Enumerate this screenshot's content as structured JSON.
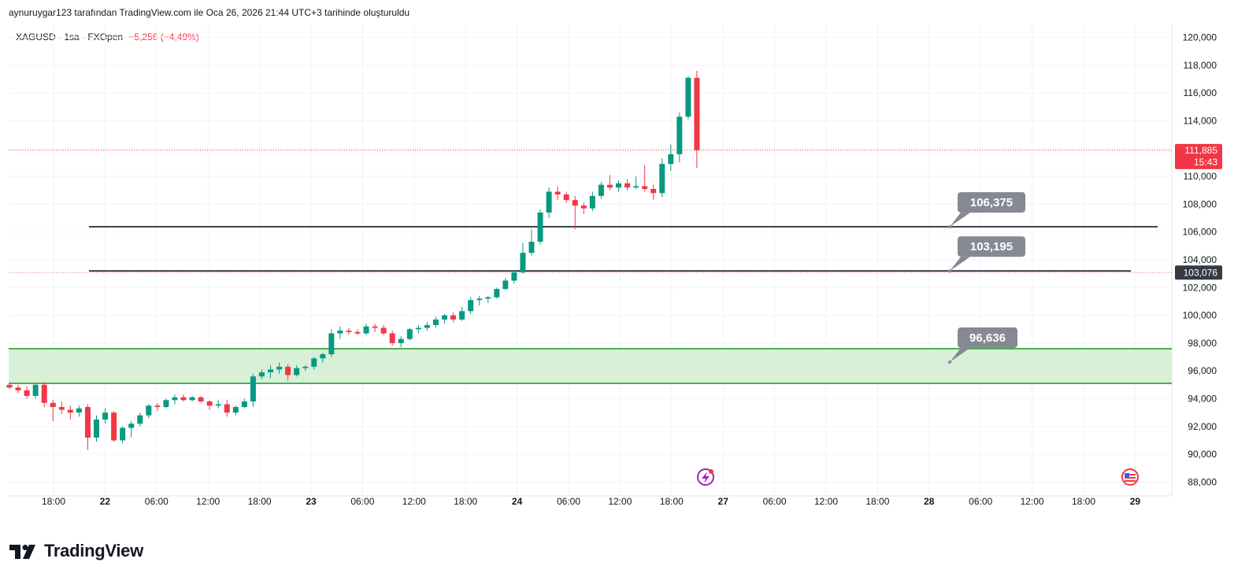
{
  "header": {
    "attribution": "aynuruygar123 tarafından TradingView.com ile Oca 26, 2026 21:44 UTC+3 tarihinde oluşturuldu"
  },
  "legend": {
    "symbol": "XAGUSD · 1sa · FXOpen",
    "change": "−5,256 (−4,49%)"
  },
  "footer": {
    "brand": "TradingView"
  },
  "colors": {
    "up": "#089981",
    "down": "#f23645",
    "zone_fill": "#d8f0d8",
    "zone_line": "#4caf50",
    "line": "#131722",
    "callout": "#868993"
  },
  "chart_data": {
    "type": "candlestick",
    "symbol": "XAGUSD",
    "interval": "1sa",
    "ylim": [
      87,
      121
    ],
    "y_ticks": [
      "120,000",
      "118,000",
      "116,000",
      "114,000",
      "112,000",
      "110,000",
      "108,000",
      "106,000",
      "104,000",
      "102,000",
      "100,000",
      "98,000",
      "96,000",
      "94,000",
      "92,000",
      "90,000",
      "88,000"
    ],
    "y_tick_values": [
      120,
      118,
      116,
      114,
      112,
      110,
      108,
      106,
      104,
      102,
      100,
      98,
      96,
      94,
      92,
      90,
      88
    ],
    "x_ticks": [
      "18:00",
      "22",
      "06:00",
      "12:00",
      "18:00",
      "23",
      "06:00",
      "12:00",
      "18:00",
      "24",
      "06:00",
      "12:00",
      "18:00",
      "27",
      "06:00",
      "12:00",
      "18:00",
      "28",
      "06:00",
      "12:00",
      "18:00",
      "29"
    ],
    "x_tick_bold": [
      false,
      true,
      false,
      false,
      false,
      true,
      false,
      false,
      false,
      true,
      false,
      false,
      false,
      true,
      false,
      false,
      false,
      true,
      false,
      false,
      false,
      true
    ],
    "last_price": {
      "value": 111.885,
      "label": "111,885",
      "timer": "15:43"
    },
    "marked_price": {
      "value": 103.076,
      "label": "103,076"
    },
    "levels": [
      {
        "value": 106.375,
        "label": "106,375"
      },
      {
        "value": 103.195,
        "label": "103,195"
      }
    ],
    "zone": {
      "from": 95.1,
      "to": 97.6,
      "label": "96,636",
      "label_value": 96.636
    },
    "candles": [
      [
        95.0,
        95.1,
        94.7,
        94.8
      ],
      [
        94.8,
        95.0,
        94.4,
        94.6
      ],
      [
        94.6,
        94.9,
        94.0,
        94.2
      ],
      [
        94.2,
        95.1,
        94.0,
        95.0
      ],
      [
        95.0,
        95.2,
        93.4,
        93.7
      ],
      [
        93.7,
        93.9,
        92.4,
        93.4
      ],
      [
        93.4,
        93.8,
        92.9,
        93.2
      ],
      [
        93.2,
        93.5,
        92.5,
        93.0
      ],
      [
        93.0,
        93.5,
        92.7,
        93.3
      ],
      [
        93.4,
        93.6,
        90.3,
        91.2
      ],
      [
        91.2,
        92.8,
        90.9,
        92.5
      ],
      [
        92.5,
        93.3,
        92.2,
        93.0
      ],
      [
        93.0,
        93.1,
        90.9,
        91.0
      ],
      [
        91.0,
        92.0,
        90.8,
        91.9
      ],
      [
        91.9,
        92.4,
        91.2,
        92.2
      ],
      [
        92.2,
        93.0,
        92.0,
        92.8
      ],
      [
        92.8,
        93.6,
        92.6,
        93.5
      ],
      [
        93.5,
        93.7,
        93.1,
        93.4
      ],
      [
        93.4,
        94.0,
        93.3,
        93.9
      ],
      [
        93.9,
        94.3,
        93.6,
        94.1
      ],
      [
        94.1,
        94.3,
        93.8,
        93.9
      ],
      [
        93.9,
        94.2,
        93.8,
        94.1
      ],
      [
        94.1,
        94.2,
        93.7,
        93.8
      ],
      [
        93.8,
        93.9,
        93.2,
        93.5
      ],
      [
        93.5,
        93.9,
        93.3,
        93.6
      ],
      [
        93.6,
        93.9,
        92.7,
        93.0
      ],
      [
        93.0,
        93.5,
        92.8,
        93.4
      ],
      [
        93.4,
        94.0,
        93.3,
        93.8
      ],
      [
        93.8,
        95.8,
        93.4,
        95.6
      ],
      [
        95.6,
        96.1,
        95.4,
        95.9
      ],
      [
        95.9,
        96.4,
        95.5,
        96.1
      ],
      [
        96.1,
        96.6,
        95.8,
        96.3
      ],
      [
        96.3,
        96.5,
        95.3,
        95.7
      ],
      [
        95.7,
        96.4,
        95.6,
        96.2
      ],
      [
        96.2,
        96.4,
        96.0,
        96.3
      ],
      [
        96.3,
        97.0,
        96.1,
        96.9
      ],
      [
        96.9,
        97.3,
        96.6,
        97.2
      ],
      [
        97.2,
        99.0,
        97.0,
        98.7
      ],
      [
        98.7,
        99.2,
        98.3,
        98.9
      ],
      [
        98.9,
        99.1,
        98.6,
        98.8
      ],
      [
        98.8,
        99.0,
        98.6,
        98.7
      ],
      [
        98.7,
        99.4,
        98.6,
        99.2
      ],
      [
        99.2,
        99.4,
        98.8,
        99.1
      ],
      [
        99.1,
        99.3,
        98.6,
        98.7
      ],
      [
        98.7,
        98.9,
        97.8,
        98.0
      ],
      [
        98.0,
        98.5,
        97.7,
        98.3
      ],
      [
        98.3,
        99.1,
        98.2,
        99.0
      ],
      [
        99.0,
        99.3,
        98.7,
        99.1
      ],
      [
        99.1,
        99.5,
        98.9,
        99.3
      ],
      [
        99.3,
        99.9,
        99.1,
        99.7
      ],
      [
        99.7,
        100.1,
        99.4,
        100.0
      ],
      [
        100.0,
        100.2,
        99.5,
        99.7
      ],
      [
        99.7,
        100.6,
        99.6,
        100.3
      ],
      [
        100.3,
        101.3,
        100.1,
        101.1
      ],
      [
        101.1,
        101.4,
        100.7,
        101.2
      ],
      [
        101.2,
        101.4,
        100.9,
        101.3
      ],
      [
        101.3,
        102.0,
        101.2,
        101.9
      ],
      [
        101.9,
        102.7,
        101.8,
        102.5
      ],
      [
        102.5,
        103.2,
        102.3,
        103.1
      ],
      [
        103.1,
        105.2,
        103.0,
        104.5
      ],
      [
        104.5,
        106.2,
        104.3,
        105.3
      ],
      [
        105.3,
        107.6,
        105.1,
        107.4
      ],
      [
        107.4,
        109.2,
        107.0,
        108.9
      ],
      [
        108.9,
        109.3,
        108.3,
        108.7
      ],
      [
        108.7,
        108.9,
        108.1,
        108.3
      ],
      [
        108.3,
        108.6,
        106.2,
        107.9
      ],
      [
        107.9,
        108.1,
        107.3,
        107.7
      ],
      [
        107.7,
        108.9,
        107.5,
        108.6
      ],
      [
        108.6,
        109.6,
        108.4,
        109.4
      ],
      [
        109.4,
        110.1,
        109.0,
        109.2
      ],
      [
        109.2,
        109.7,
        108.9,
        109.5
      ],
      [
        109.5,
        109.8,
        109.0,
        109.2
      ],
      [
        109.2,
        110.0,
        109.1,
        109.3
      ],
      [
        109.3,
        110.8,
        108.9,
        109.1
      ],
      [
        109.1,
        109.4,
        108.3,
        108.8
      ],
      [
        108.8,
        111.3,
        108.5,
        110.9
      ],
      [
        110.9,
        112.3,
        110.4,
        111.6
      ],
      [
        111.6,
        114.6,
        111.0,
        114.3
      ],
      [
        114.3,
        117.2,
        114.1,
        117.1
      ],
      [
        117.1,
        117.6,
        110.6,
        111.885
      ]
    ]
  }
}
